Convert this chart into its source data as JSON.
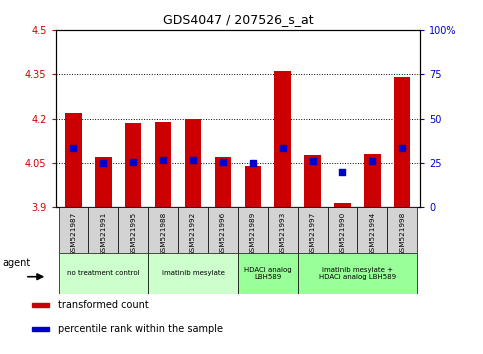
{
  "title": "GDS4047 / 207526_s_at",
  "samples": [
    "GSM521987",
    "GSM521991",
    "GSM521995",
    "GSM521988",
    "GSM521992",
    "GSM521996",
    "GSM521989",
    "GSM521993",
    "GSM521997",
    "GSM521990",
    "GSM521994",
    "GSM521998"
  ],
  "bar_values": [
    4.22,
    4.07,
    4.185,
    4.19,
    4.2,
    4.07,
    4.04,
    4.36,
    4.075,
    3.915,
    4.08,
    4.34
  ],
  "dot_values": [
    4.1,
    4.05,
    4.052,
    4.06,
    4.06,
    4.052,
    4.05,
    4.1,
    4.055,
    4.02,
    4.055,
    4.1
  ],
  "ylim_left": [
    3.9,
    4.5
  ],
  "ylim_right": [
    0,
    100
  ],
  "yticks_left": [
    3.9,
    4.05,
    4.2,
    4.35,
    4.5
  ],
  "ytick_labels_left": [
    "3.9",
    "4.05",
    "4.2",
    "4.35",
    "4.5"
  ],
  "yticks_right": [
    0,
    25,
    50,
    75,
    100
  ],
  "ytick_labels_right": [
    "0",
    "25",
    "50",
    "75",
    "100%"
  ],
  "hlines": [
    4.05,
    4.2,
    4.35
  ],
  "bar_color": "#cc0000",
  "dot_color": "#0000cc",
  "bar_bottom": 3.9,
  "groups": [
    {
      "label": "no treatment control",
      "start": 0,
      "end": 2,
      "color": "#ccffcc"
    },
    {
      "label": "imatinib mesylate",
      "start": 3,
      "end": 5,
      "color": "#ccffcc"
    },
    {
      "label": "HDACi analog\nLBH589",
      "start": 6,
      "end": 7,
      "color": "#99ff99"
    },
    {
      "label": "imatinib mesylate +\nHDACi analog LBH589",
      "start": 8,
      "end": 11,
      "color": "#99ff99"
    }
  ],
  "agent_label": "agent",
  "legend_items": [
    {
      "label": "transformed count",
      "color": "#cc0000"
    },
    {
      "label": "percentile rank within the sample",
      "color": "#0000cc"
    }
  ],
  "bar_width": 0.55,
  "tick_color_left": "#cc0000",
  "tick_color_right": "#0000cc",
  "background_plot": "#ffffff",
  "background_tick": "#d3d3d3"
}
